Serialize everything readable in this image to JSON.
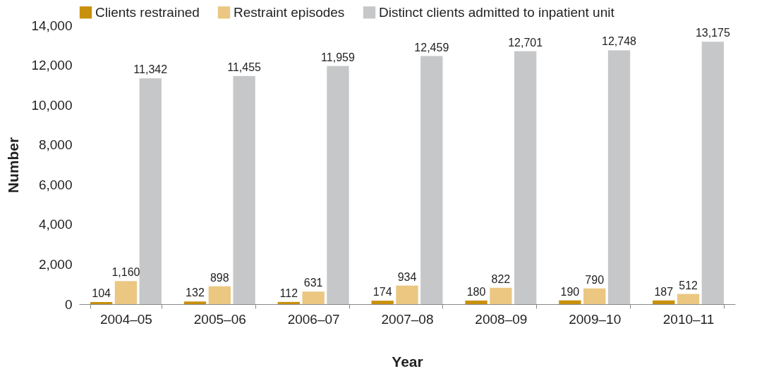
{
  "chart_data": {
    "type": "bar",
    "xlabel": "Year",
    "ylabel": "Number",
    "categories": [
      "2004–05",
      "2005–06",
      "2006–07",
      "2007–08",
      "2008–09",
      "2009–10",
      "2010–11"
    ],
    "series": [
      {
        "name": "Clients restrained",
        "color": "#c8900c",
        "values": [
          104,
          132,
          112,
          174,
          180,
          190,
          187
        ],
        "value_labels": [
          "104",
          "132",
          "112",
          "174",
          "180",
          "190",
          "187"
        ]
      },
      {
        "name": "Restraint episodes",
        "color": "#ebc782",
        "values": [
          1160,
          898,
          631,
          934,
          822,
          790,
          512
        ],
        "value_labels": [
          "1,160",
          "898",
          "631",
          "934",
          "822",
          "790",
          "512"
        ]
      },
      {
        "name": "Distinct clients admitted to inpatient unit",
        "color": "#c6c7c9",
        "values": [
          11342,
          11455,
          11959,
          12459,
          12701,
          12748,
          13175
        ],
        "value_labels": [
          "11,342",
          "11,455",
          "11,959",
          "12,459",
          "12,701",
          "12,748",
          "13,175"
        ]
      }
    ],
    "ylim": [
      0,
      14000
    ],
    "yticks": [
      0,
      {
        "value": 2000,
        "label": "2,000"
      },
      {
        "value": 4000,
        "label": "4,000"
      },
      {
        "value": 6000,
        "label": "6,000"
      },
      {
        "value": 8000,
        "label": "8,000"
      },
      {
        "value": 10000,
        "label": "10,000"
      },
      {
        "value": 12000,
        "label": "12,000"
      },
      {
        "value": 14000,
        "label": "14,000"
      }
    ],
    "legend": "top left",
    "grid": false
  }
}
